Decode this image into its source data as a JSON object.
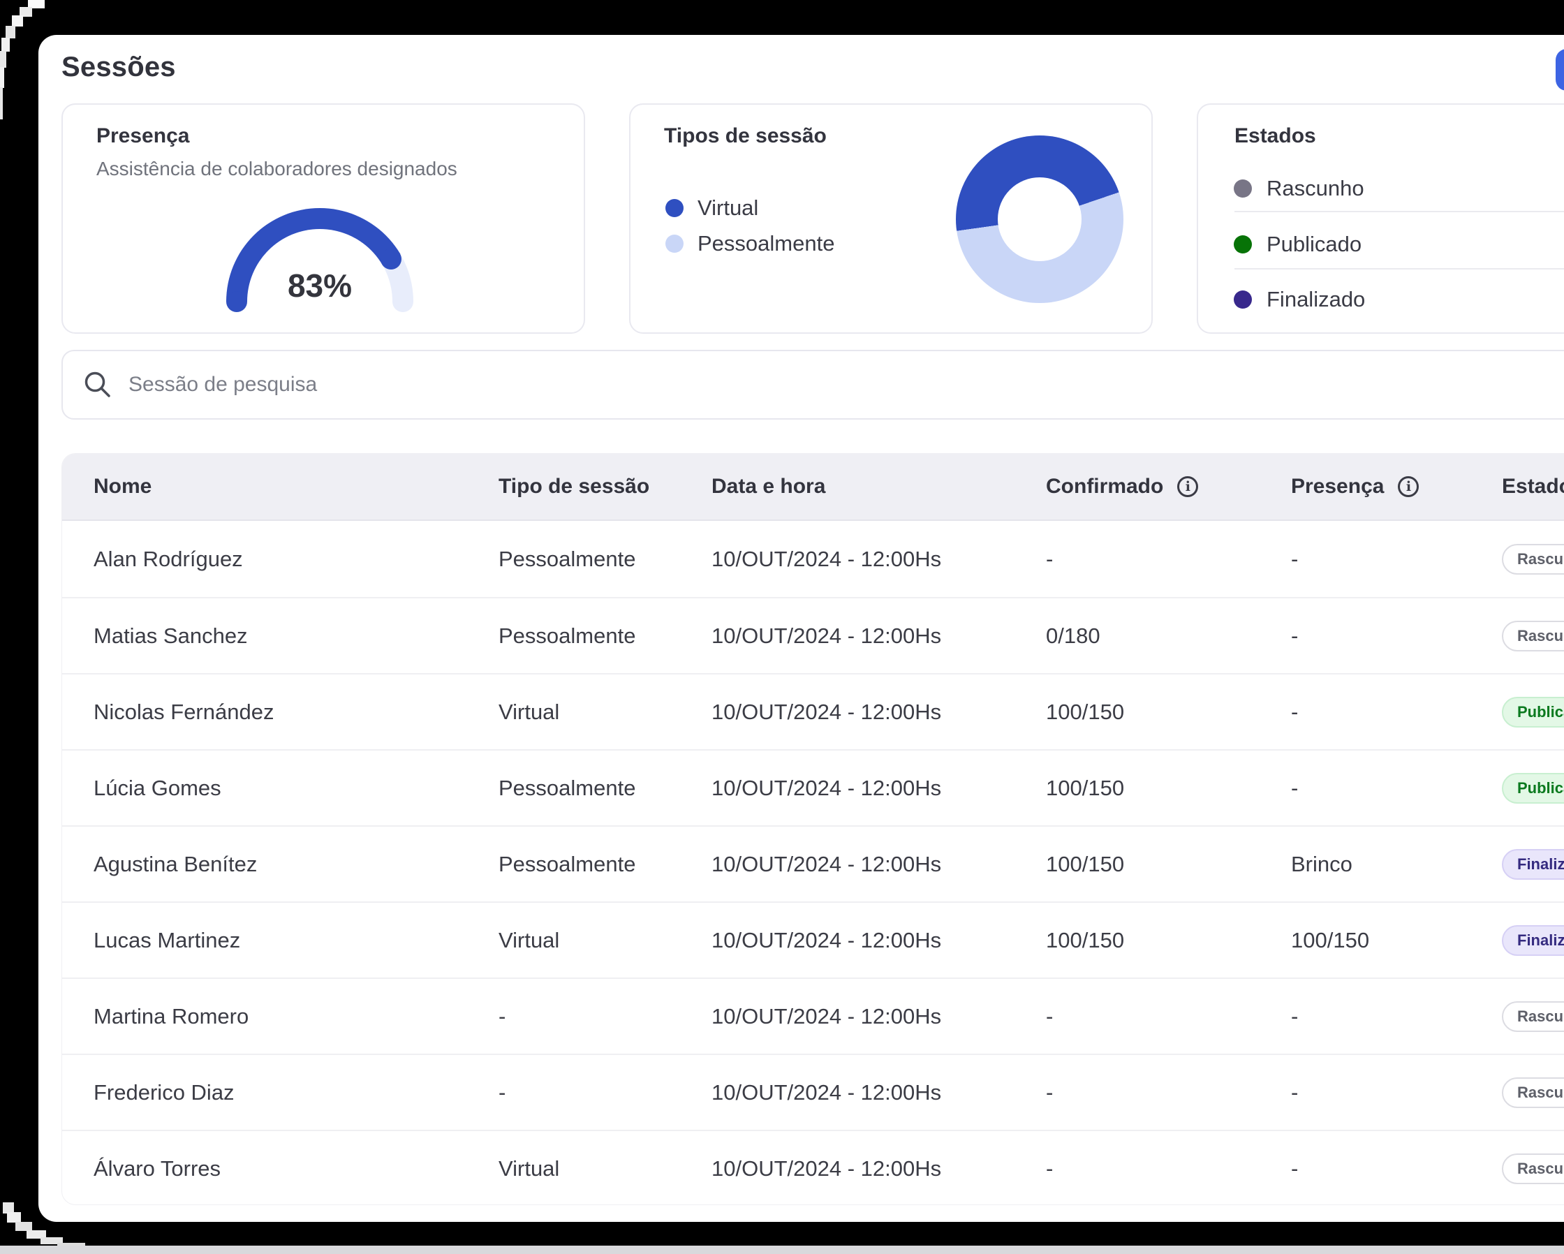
{
  "page": {
    "title": "Sessões"
  },
  "icons": {
    "info": "i"
  },
  "cards": {
    "presenca": {
      "title": "Presença",
      "subtitle": "Assistência de colaboradores designados",
      "value_label": "83%"
    },
    "tipos": {
      "title": "Tipos de sessão",
      "legend": [
        {
          "label": "Virtual",
          "color": "#2F4FC0"
        },
        {
          "label": "Pessoalmente",
          "color": "#C9D6F7"
        }
      ]
    },
    "estados": {
      "title": "Estados",
      "items": [
        {
          "label": "Rascunho",
          "color": "#787586"
        },
        {
          "label": "Publicado",
          "color": "#077307"
        },
        {
          "label": "Finalizado",
          "color": "#38288C"
        }
      ]
    }
  },
  "search": {
    "placeholder": "Sessão de pesquisa"
  },
  "table": {
    "columns": [
      {
        "label": "Nome"
      },
      {
        "label": "Tipo de sessão"
      },
      {
        "label": "Data e hora"
      },
      {
        "label": "Confirmado",
        "info": true
      },
      {
        "label": "Presença",
        "info": true
      },
      {
        "label": "Estado"
      }
    ],
    "rows": [
      {
        "nome": "Alan Rodríguez",
        "tipo": "Pessoalmente",
        "data": "10/OUT/2024 - 12:00Hs",
        "confirmado": "-",
        "presenca": "-",
        "estado": "Rascunho",
        "estado_variant": "rascunho"
      },
      {
        "nome": "Matias Sanchez",
        "tipo": "Pessoalmente",
        "data": "10/OUT/2024 - 12:00Hs",
        "confirmado": "0/180",
        "presenca": "-",
        "estado": "Rascunho",
        "estado_variant": "rascunho"
      },
      {
        "nome": "Nicolas Fernández",
        "tipo": "Virtual",
        "data": "10/OUT/2024 - 12:00Hs",
        "confirmado": "100/150",
        "presenca": "-",
        "estado": "Publicado",
        "estado_variant": "publicado"
      },
      {
        "nome": "Lúcia Gomes",
        "tipo": "Pessoalmente",
        "data": "10/OUT/2024 - 12:00Hs",
        "confirmado": "100/150",
        "presenca": "-",
        "estado": "Publicado",
        "estado_variant": "publicado"
      },
      {
        "nome": "Agustina Benítez",
        "tipo": "Pessoalmente",
        "data": "10/OUT/2024 - 12:00Hs",
        "confirmado": "100/150",
        "presenca": "Brinco",
        "estado": "Finalizado",
        "estado_variant": "finalizado"
      },
      {
        "nome": "Lucas Martinez",
        "tipo": "Virtual",
        "data": "10/OUT/2024 - 12:00Hs",
        "confirmado": "100/150",
        "presenca": "100/150",
        "estado": "Finalizado",
        "estado_variant": "finalizado"
      },
      {
        "nome": "Martina Romero",
        "tipo": "-",
        "data": "10/OUT/2024 - 12:00Hs",
        "confirmado": "-",
        "presenca": "-",
        "estado": "Rascunho",
        "estado_variant": "rascunho"
      },
      {
        "nome": "Frederico Diaz",
        "tipo": "-",
        "data": "10/OUT/2024 - 12:00Hs",
        "confirmado": "-",
        "presenca": "-",
        "estado": "Rascunho",
        "estado_variant": "rascunho"
      },
      {
        "nome": "Álvaro Torres",
        "tipo": "Virtual",
        "data": "10/OUT/2024 - 12:00Hs",
        "confirmado": "-",
        "presenca": "-",
        "estado": "Rascunho",
        "estado_variant": "rascunho"
      }
    ]
  },
  "status_variants": {
    "rascunho": {
      "bg": "#FFFFFF",
      "border": "#DCDCE2",
      "text": "#5E6069"
    },
    "publicado": {
      "bg": "#E3F8E6",
      "border": "#C8EFD0",
      "text": "#0B7A1F"
    },
    "finalizado": {
      "bg": "#E9E6FB",
      "border": "#D6D0F5",
      "text": "#352B80"
    }
  },
  "colors": {
    "primary_blue": "#2F4FC0",
    "light_blue": "#C9D6F7",
    "gauge_track": "#E8EDFB",
    "button_blue": "#3D64E3"
  },
  "chart_data": [
    {
      "type": "pie",
      "variant": "half-donut-gauge",
      "title": "Presença",
      "subtitle": "Assistência de colaboradores designados",
      "value_percent": 83,
      "value_label": "83%",
      "range": [
        0,
        100
      ],
      "segments": [
        {
          "label": "preenchido",
          "value": 83,
          "color": "#2F4FC0"
        },
        {
          "label": "restante",
          "value": 17,
          "color": "#E8EDFB"
        }
      ]
    },
    {
      "type": "pie",
      "variant": "donut",
      "title": "Tipos de sessão",
      "legend_position": "left",
      "start_angle_deg": 262,
      "values_estimated": true,
      "segments": [
        {
          "label": "Virtual",
          "value": 47,
          "color": "#2F4FC0"
        },
        {
          "label": "Pessoalmente",
          "value": 53,
          "color": "#C9D6F7"
        }
      ]
    }
  ]
}
